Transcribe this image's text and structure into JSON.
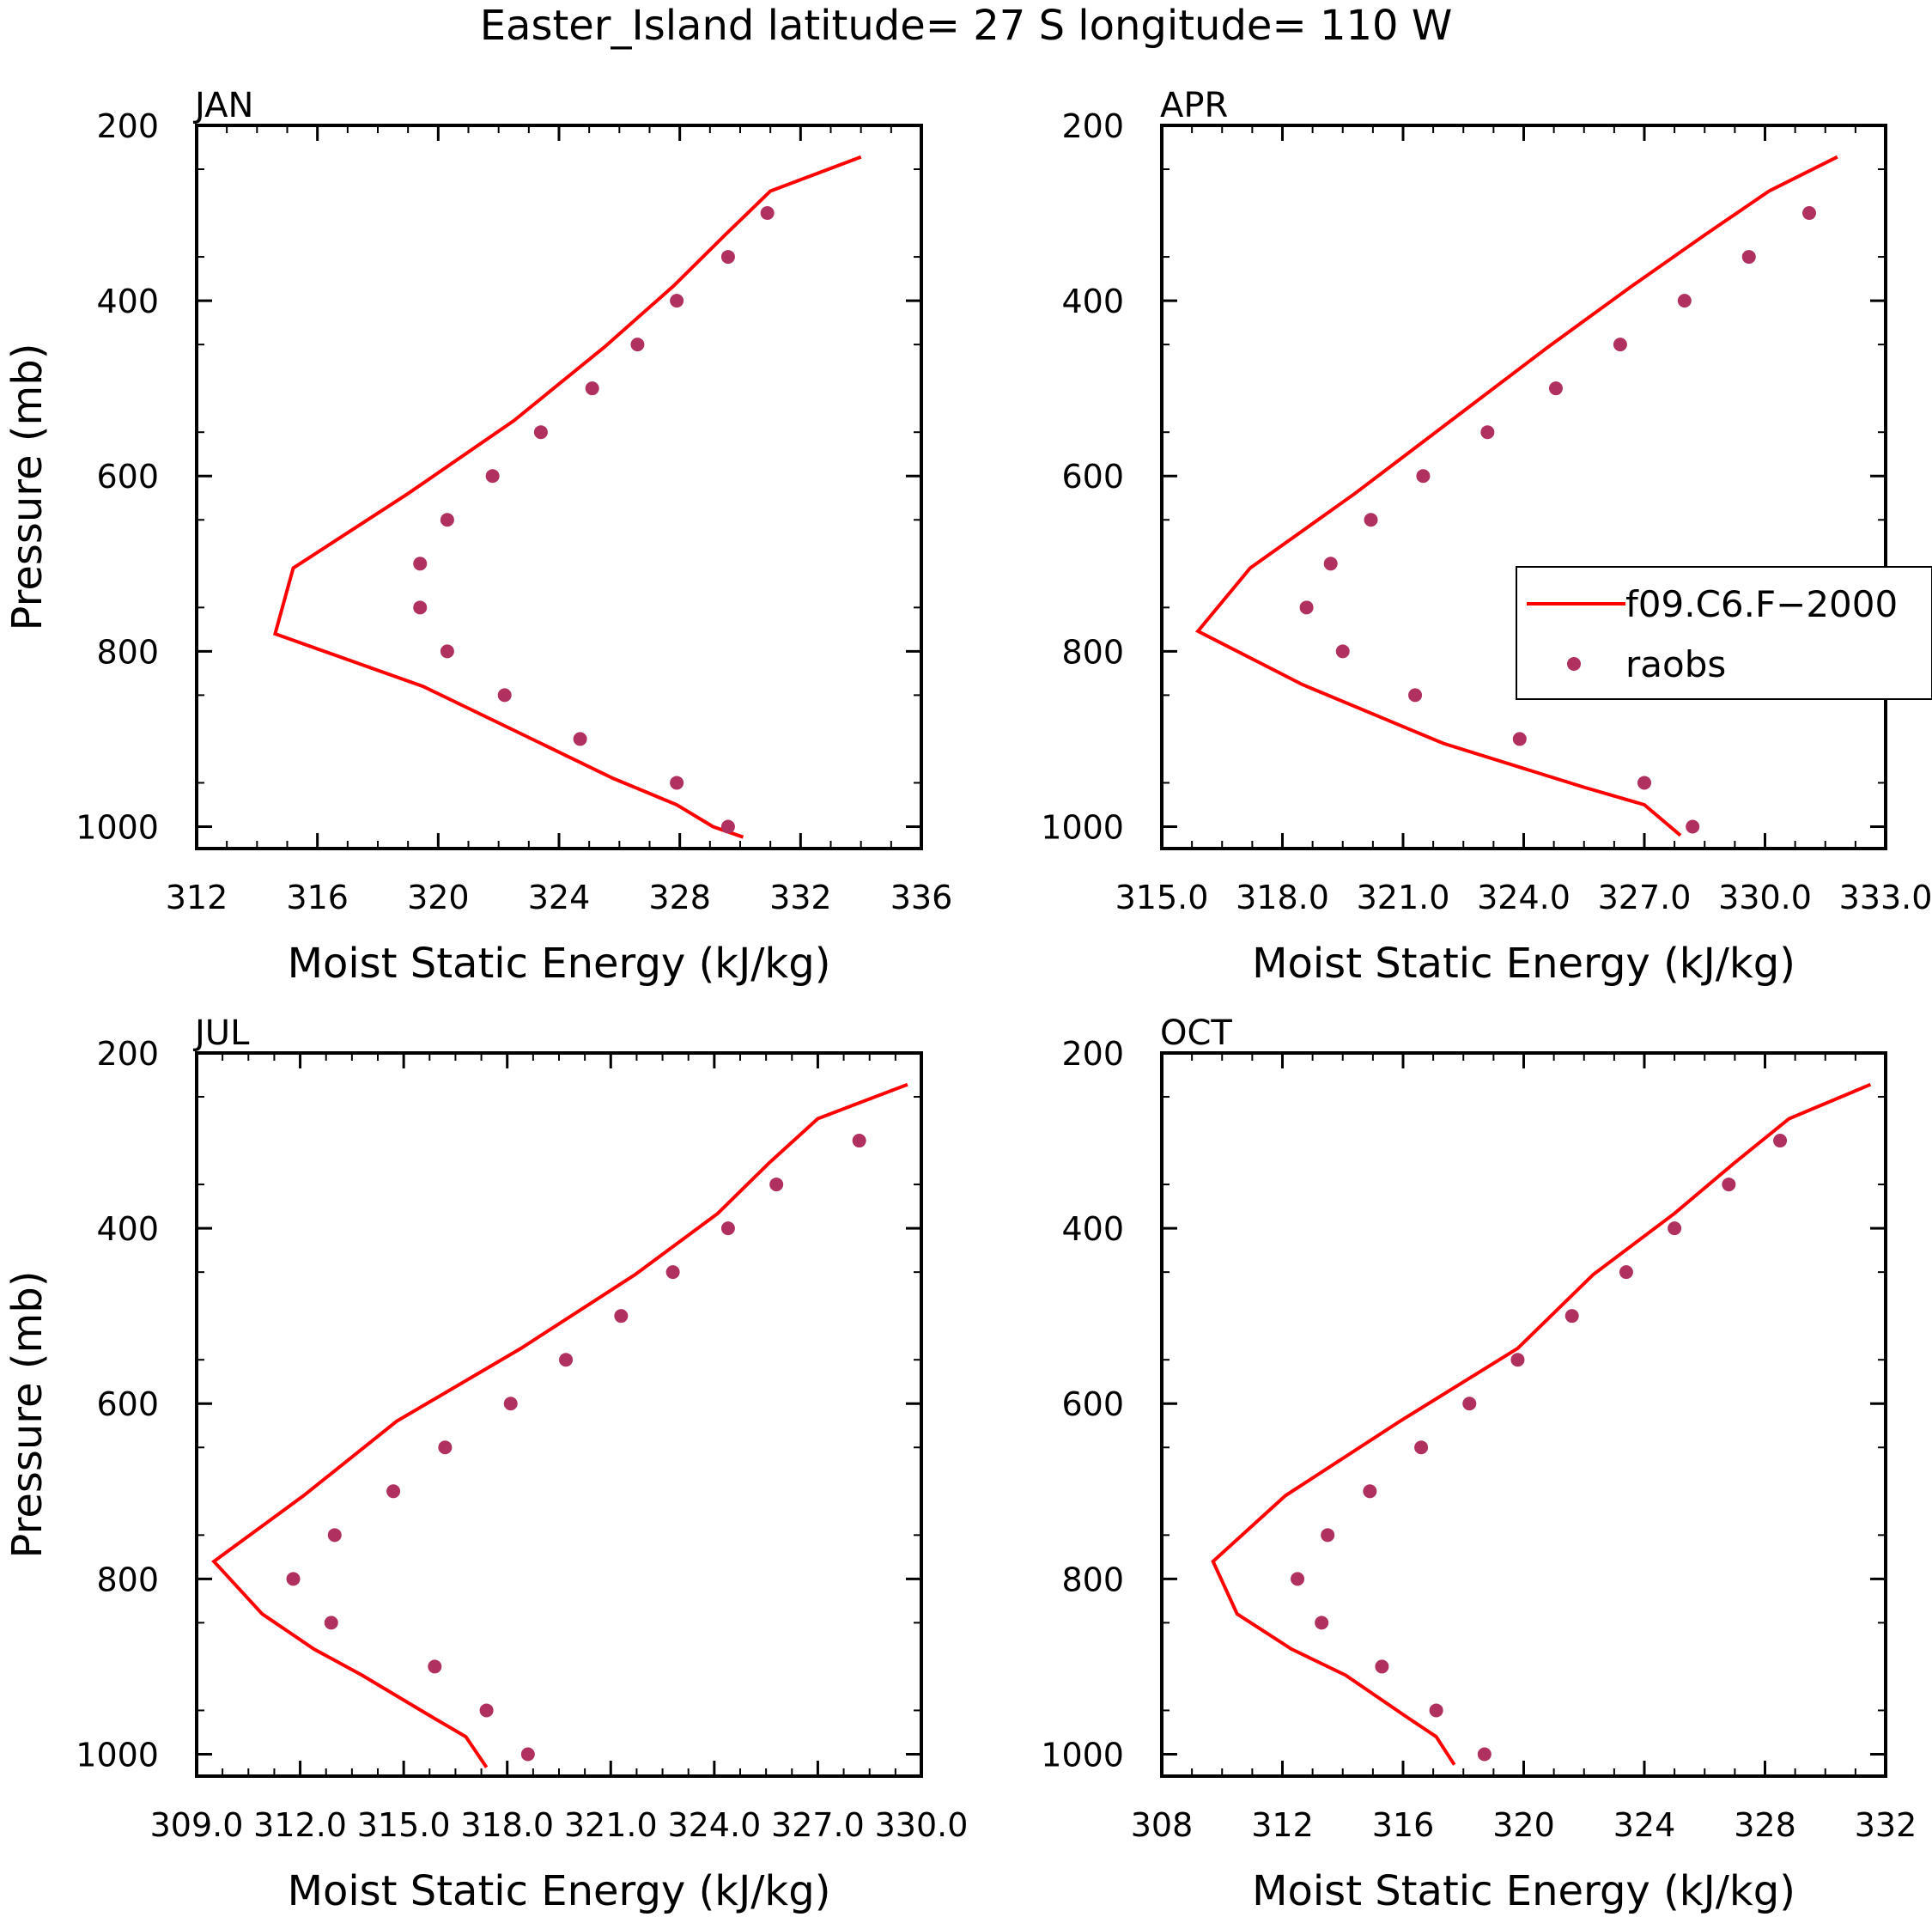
{
  "title": "Easter_Island  latitude= 27 S longitude= 110 W",
  "colors": {
    "model": "#ff0000",
    "obs": "#b03060",
    "axis": "#000000"
  },
  "legend": {
    "model_label": "f09.C6.F−2000",
    "obs_label": "raobs"
  },
  "chart_data": [
    {
      "type": "line",
      "title": "JAN",
      "xlabel": "Moist Static Energy (kJ/kg)",
      "ylabel": "Pressure (mb)",
      "xlim": [
        312,
        336
      ],
      "ylim": [
        1025,
        200
      ],
      "xticks": [
        312,
        316,
        320,
        324,
        328,
        332,
        336
      ],
      "xtick_labels": [
        "312",
        "316",
        "320",
        "324",
        "328",
        "332",
        "336"
      ],
      "yticks": [
        200,
        400,
        600,
        800,
        1000
      ],
      "ytick_labels": [
        "200",
        "400",
        "600",
        "800",
        "1000"
      ],
      "series": [
        {
          "name": "f09.C6.F−2000",
          "kind": "line",
          "x": [
            334.0,
            331.0,
            329.5,
            327.8,
            325.5,
            322.5,
            319.0,
            315.2,
            314.6,
            319.5,
            323.4,
            325.8,
            327.9,
            329.1,
            330.1
          ],
          "y": [
            236,
            275,
            325,
            383,
            453,
            537,
            620,
            705,
            780,
            840,
            905,
            945,
            975,
            1000,
            1012
          ]
        },
        {
          "name": "raobs",
          "kind": "scatter",
          "x": [
            330.9,
            329.6,
            327.9,
            326.6,
            325.1,
            323.4,
            321.8,
            320.3,
            319.4,
            319.4,
            320.3,
            322.2,
            324.7,
            327.9,
            329.6
          ],
          "y": [
            300,
            350,
            400,
            450,
            500,
            550,
            600,
            650,
            700,
            750,
            800,
            850,
            900,
            950,
            1000
          ]
        }
      ]
    },
    {
      "type": "line",
      "title": "APR",
      "xlabel": "Moist Static Energy (kJ/kg)",
      "ylabel": "",
      "xlim": [
        315.0,
        333.0
      ],
      "ylim": [
        1025,
        200
      ],
      "xticks": [
        315,
        318,
        321,
        324,
        327,
        330,
        333
      ],
      "xtick_labels": [
        "315.0",
        "318.0",
        "321.0",
        "324.0",
        "327.0",
        "330.0",
        "333.0"
      ],
      "yticks": [
        200,
        400,
        600,
        800,
        1000
      ],
      "ytick_labels": [
        "200",
        "400",
        "600",
        "800",
        "1000"
      ],
      "series": [
        {
          "name": "f09.C6.F−2000",
          "kind": "line",
          "x": [
            331.8,
            330.1,
            328.5,
            326.7,
            324.6,
            322.3,
            319.8,
            317.2,
            315.9,
            318.5,
            322.0,
            325.5,
            327.0,
            327.9
          ],
          "y": [
            236,
            275,
            325,
            383,
            453,
            533,
            620,
            705,
            777,
            838,
            905,
            955,
            975,
            1010
          ]
        },
        {
          "name": "raobs",
          "kind": "scatter",
          "x": [
            331.1,
            329.6,
            328.0,
            326.4,
            324.8,
            323.1,
            321.5,
            320.2,
            319.2,
            318.6,
            319.5,
            321.3,
            323.9,
            327.0,
            328.2
          ],
          "y": [
            300,
            350,
            400,
            450,
            500,
            550,
            600,
            650,
            700,
            750,
            800,
            850,
            900,
            950,
            1000
          ]
        }
      ]
    },
    {
      "type": "line",
      "title": "JUL",
      "xlabel": "Moist Static Energy (kJ/kg)",
      "ylabel": "Pressure (mb)",
      "xlim": [
        309.0,
        330.0
      ],
      "ylim": [
        1025,
        200
      ],
      "xticks": [
        309,
        312,
        315,
        318,
        321,
        324,
        327,
        330
      ],
      "xtick_labels": [
        "309.0",
        "312.0",
        "315.0",
        "318.0",
        "321.0",
        "324.0",
        "327.0",
        "330.0"
      ],
      "yticks": [
        200,
        400,
        600,
        800,
        1000
      ],
      "ytick_labels": [
        "200",
        "400",
        "600",
        "800",
        "1000"
      ],
      "series": [
        {
          "name": "f09.C6.F−2000",
          "kind": "line",
          "x": [
            329.6,
            327.0,
            325.6,
            324.1,
            321.7,
            318.4,
            314.8,
            312.1,
            309.5,
            310.9,
            312.4,
            313.8,
            315.8,
            316.8,
            317.4
          ],
          "y": [
            236,
            275,
            325,
            383,
            453,
            537,
            620,
            705,
            780,
            840,
            880,
            910,
            957,
            980,
            1015
          ]
        },
        {
          "name": "raobs",
          "kind": "scatter",
          "x": [
            328.2,
            325.8,
            324.4,
            322.8,
            321.3,
            319.7,
            318.1,
            316.2,
            314.7,
            313.0,
            311.8,
            312.9,
            315.9,
            317.4,
            318.6
          ],
          "y": [
            300,
            350,
            400,
            450,
            500,
            550,
            600,
            650,
            700,
            750,
            800,
            850,
            900,
            950,
            1000
          ]
        }
      ]
    },
    {
      "type": "line",
      "title": "OCT",
      "xlabel": "Moist Static Energy (kJ/kg)",
      "ylabel": "",
      "xlim": [
        308,
        332
      ],
      "ylim": [
        1025,
        200
      ],
      "xticks": [
        308,
        312,
        316,
        320,
        324,
        328,
        332
      ],
      "xtick_labels": [
        "308",
        "312",
        "316",
        "320",
        "324",
        "328",
        "332"
      ],
      "yticks": [
        200,
        400,
        600,
        800,
        1000
      ],
      "ytick_labels": [
        "200",
        "400",
        "600",
        "800",
        "1000"
      ],
      "series": [
        {
          "name": "f09.C6.F−2000",
          "kind": "line",
          "x": [
            331.5,
            328.8,
            327.0,
            325.0,
            322.3,
            319.8,
            315.9,
            312.1,
            309.7,
            310.5,
            312.3,
            314.1,
            316.1,
            317.1,
            317.7
          ],
          "y": [
            236,
            275,
            325,
            383,
            453,
            537,
            620,
            705,
            780,
            840,
            880,
            910,
            957,
            980,
            1012
          ]
        },
        {
          "name": "raobs",
          "kind": "scatter",
          "x": [
            328.5,
            326.8,
            325.0,
            323.4,
            321.6,
            319.8,
            318.2,
            316.6,
            314.9,
            313.5,
            312.5,
            313.3,
            315.3,
            317.1,
            318.7
          ],
          "y": [
            300,
            350,
            400,
            450,
            500,
            550,
            600,
            650,
            700,
            750,
            800,
            850,
            900,
            950,
            1000
          ]
        }
      ]
    }
  ]
}
